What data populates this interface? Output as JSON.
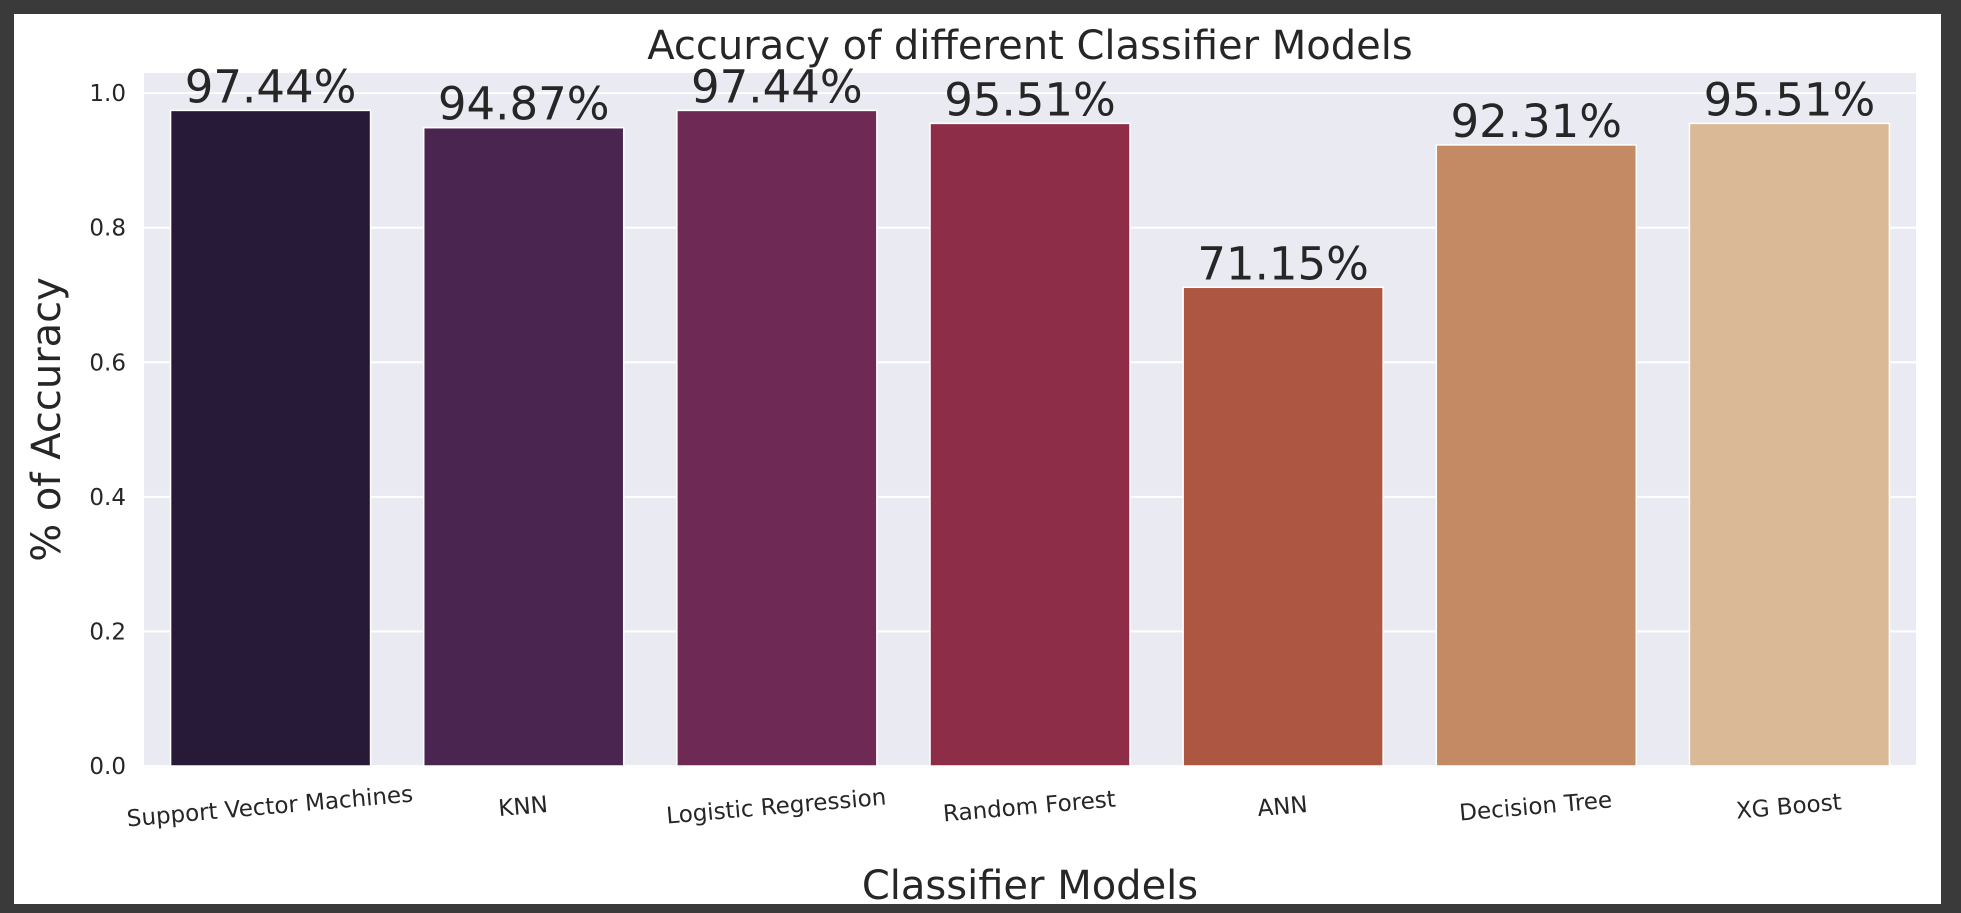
{
  "chart_data": {
    "type": "bar",
    "title": "Accuracy of different Classifier Models",
    "xlabel": "Classifier Models",
    "ylabel": "% of Accuracy",
    "categories": [
      "Support Vector Machines",
      "KNN",
      "Logistic Regression",
      "Random Forest",
      "ANN",
      "Decision Tree",
      "XG Boost"
    ],
    "values": [
      0.9744,
      0.9487,
      0.9744,
      0.9551,
      0.7115,
      0.9231,
      0.9551
    ],
    "data_labels": [
      "97.44%",
      "94.87%",
      "97.44%",
      "95.51%",
      "71.15%",
      "92.31%",
      "95.51%"
    ],
    "yticks": [
      0.0,
      0.2,
      0.4,
      0.6,
      0.8,
      1.0
    ],
    "ytick_labels": [
      "0.0",
      "0.2",
      "0.4",
      "0.6",
      "0.8",
      "1.0"
    ],
    "ylim": [
      0,
      1.03
    ],
    "grid": true,
    "colors": [
      "#271a38",
      "#4a254f",
      "#6e2a55",
      "#8e2d48",
      "#ad5641",
      "#c48a63",
      "#d9b996"
    ],
    "background_color": "#eaeaf2",
    "legend": "none"
  }
}
